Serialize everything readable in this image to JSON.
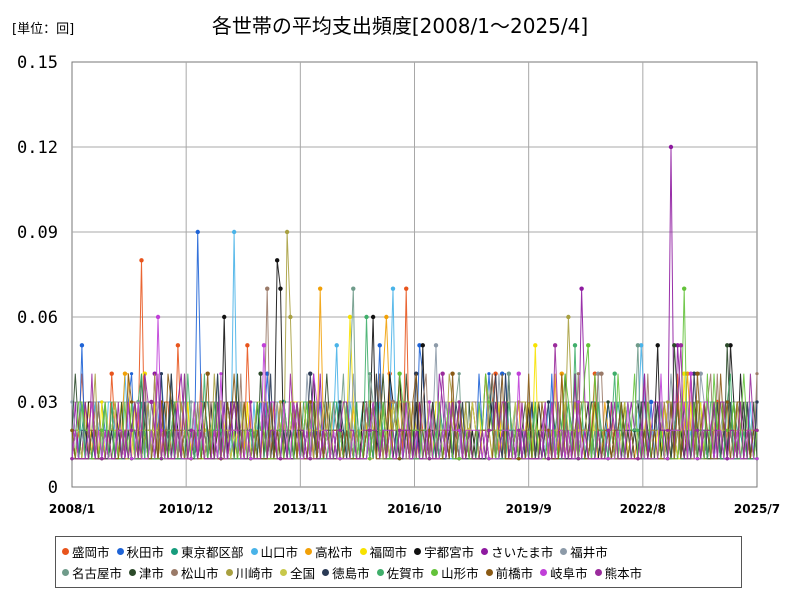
{
  "unit_label": "[単位：回]",
  "chart_data": {
    "type": "line",
    "title": "各世帯の平均支出頻度[2008/1〜2025/4]",
    "xlabel": "",
    "ylabel": "",
    "ylim": [
      0,
      0.15
    ],
    "yticks": [
      "0",
      "0.03",
      "0.06",
      "0.09",
      "0.12",
      "0.15"
    ],
    "ytick_values": [
      0,
      0.03,
      0.06,
      0.09,
      0.12,
      0.15
    ],
    "xticks": [
      "2008/1",
      "2010/12",
      "2013/11",
      "2016/10",
      "2019/9",
      "2022/8",
      "2025/7"
    ],
    "x_start": "2008/1",
    "x_end": "2025/7",
    "n_months": 208,
    "grid": true,
    "legend_position": "bottom",
    "series": [
      {
        "name": "盛岡市",
        "color": "#e8541c",
        "peaks": [
          [
            12,
            0.04
          ],
          [
            21,
            0.08
          ],
          [
            32,
            0.05
          ],
          [
            53,
            0.05
          ],
          [
            96,
            0.04
          ],
          [
            101,
            0.07
          ],
          [
            128,
            0.04
          ],
          [
            158,
            0.04
          ],
          [
            195,
            0.03
          ]
        ],
        "base": 0.01
      },
      {
        "name": "秋田市",
        "color": "#1e63d6",
        "peaks": [
          [
            3,
            0.05
          ],
          [
            38,
            0.09
          ],
          [
            59,
            0.04
          ],
          [
            93,
            0.05
          ],
          [
            105,
            0.05
          ],
          [
            130,
            0.04
          ],
          [
            175,
            0.03
          ]
        ],
        "base": 0.01
      },
      {
        "name": "東京都区部",
        "color": "#179c7d",
        "peaks": [
          [
            30,
            0.03
          ],
          [
            64,
            0.03
          ],
          [
            120,
            0.02
          ],
          [
            170,
            0.02
          ]
        ],
        "base": 0.02
      },
      {
        "name": "山口市",
        "color": "#49b3e8",
        "peaks": [
          [
            49,
            0.09
          ],
          [
            80,
            0.05
          ],
          [
            97,
            0.07
          ],
          [
            172,
            0.05
          ]
        ],
        "base": 0.01
      },
      {
        "name": "高松市",
        "color": "#f1a007",
        "peaks": [
          [
            16,
            0.04
          ],
          [
            75,
            0.07
          ],
          [
            95,
            0.06
          ],
          [
            148,
            0.04
          ],
          [
            186,
            0.04
          ]
        ],
        "base": 0.01
      },
      {
        "name": "福岡市",
        "color": "#f7e200",
        "peaks": [
          [
            22,
            0.04
          ],
          [
            84,
            0.06
          ],
          [
            140,
            0.05
          ],
          [
            185,
            0.04
          ]
        ],
        "base": 0.01
      },
      {
        "name": "宇都宮市",
        "color": "#111111",
        "peaks": [
          [
            46,
            0.06
          ],
          [
            62,
            0.08
          ],
          [
            63,
            0.07
          ],
          [
            91,
            0.06
          ],
          [
            106,
            0.05
          ],
          [
            177,
            0.05
          ],
          [
            199,
            0.05
          ]
        ],
        "base": 0.01
      },
      {
        "name": "さいたま市",
        "color": "#8e1aa0",
        "peaks": [
          [
            25,
            0.04
          ],
          [
            154,
            0.07
          ],
          [
            181,
            0.12
          ],
          [
            183,
            0.05
          ]
        ],
        "base": 0.01
      },
      {
        "name": "福井市",
        "color": "#8c9aa8",
        "peaks": [
          [
            20,
            0.03
          ],
          [
            110,
            0.05
          ],
          [
            159,
            0.04
          ],
          [
            190,
            0.04
          ]
        ],
        "base": 0.01
      },
      {
        "name": "名古屋市",
        "color": "#6f9b8a",
        "peaks": [
          [
            85,
            0.07
          ],
          [
            132,
            0.04
          ],
          [
            171,
            0.05
          ]
        ],
        "base": 0.01
      },
      {
        "name": "津市",
        "color": "#2c4a2a",
        "peaks": [
          [
            57,
            0.04
          ],
          [
            182,
            0.05
          ],
          [
            198,
            0.05
          ]
        ],
        "base": 0.01
      },
      {
        "name": "松山市",
        "color": "#9a7a68",
        "peaks": [
          [
            59,
            0.07
          ],
          [
            97,
            0.03
          ],
          [
            160,
            0.04
          ]
        ],
        "base": 0.01
      },
      {
        "name": "川崎市",
        "color": "#a8a040",
        "peaks": [
          [
            65,
            0.09
          ],
          [
            66,
            0.06
          ],
          [
            150,
            0.06
          ]
        ],
        "base": 0.01
      },
      {
        "name": "全国",
        "color": "#c8c84a",
        "peaks": [
          [
            40,
            0.02
          ],
          [
            120,
            0.02
          ],
          [
            180,
            0.02
          ]
        ],
        "base": 0.02
      },
      {
        "name": "徳島市",
        "color": "#2a3a55",
        "peaks": [
          [
            72,
            0.04
          ],
          [
            104,
            0.04
          ],
          [
            188,
            0.04
          ]
        ],
        "base": 0.01
      },
      {
        "name": "佐賀市",
        "color": "#3fae6a",
        "peaks": [
          [
            89,
            0.06
          ],
          [
            152,
            0.05
          ],
          [
            164,
            0.04
          ]
        ],
        "base": 0.01
      },
      {
        "name": "山形市",
        "color": "#63c23a",
        "peaks": [
          [
            99,
            0.04
          ],
          [
            156,
            0.05
          ],
          [
            185,
            0.07
          ]
        ],
        "base": 0.01
      },
      {
        "name": "前橋市",
        "color": "#8a5a14",
        "peaks": [
          [
            41,
            0.04
          ],
          [
            115,
            0.04
          ],
          [
            189,
            0.04
          ]
        ],
        "base": 0.01
      },
      {
        "name": "岐阜市",
        "color": "#c03fd8",
        "peaks": [
          [
            26,
            0.06
          ],
          [
            58,
            0.05
          ],
          [
            135,
            0.04
          ],
          [
            187,
            0.04
          ]
        ],
        "base": 0.01
      },
      {
        "name": "熊本市",
        "color": "#9a2b9c",
        "peaks": [
          [
            24,
            0.03
          ],
          [
            112,
            0.04
          ],
          [
            146,
            0.05
          ],
          [
            184,
            0.05
          ]
        ],
        "base": 0.01
      }
    ]
  }
}
